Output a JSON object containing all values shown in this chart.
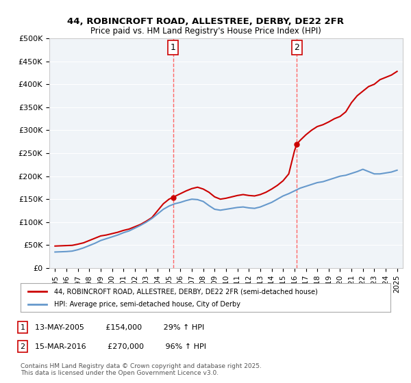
{
  "title1": "44, ROBINCROFT ROAD, ALLESTREE, DERBY, DE22 2FR",
  "title2": "Price paid vs. HM Land Registry's House Price Index (HPI)",
  "xlabel": "",
  "ylabel": "",
  "ylim": [
    0,
    500000
  ],
  "yticks": [
    0,
    50000,
    100000,
    150000,
    200000,
    250000,
    300000,
    350000,
    400000,
    450000,
    500000
  ],
  "ytick_labels": [
    "£0",
    "£50K",
    "£100K",
    "£150K",
    "£200K",
    "£250K",
    "£300K",
    "£350K",
    "£400K",
    "£450K",
    "£500K"
  ],
  "xlim_start": 1994.5,
  "xlim_end": 2025.5,
  "xticks": [
    1995,
    1996,
    1997,
    1998,
    1999,
    2000,
    2001,
    2002,
    2003,
    2004,
    2005,
    2006,
    2007,
    2008,
    2009,
    2010,
    2011,
    2012,
    2013,
    2014,
    2015,
    2016,
    2017,
    2018,
    2019,
    2020,
    2021,
    2022,
    2023,
    2024,
    2025
  ],
  "vline1_x": 2005.36,
  "vline2_x": 2016.21,
  "marker1_y": 154000,
  "marker2_y": 270000,
  "red_color": "#cc0000",
  "blue_color": "#6699cc",
  "vline_color": "#ff6666",
  "background_color": "#f0f4f8",
  "legend_label_red": "44, ROBINCROFT ROAD, ALLESTREE, DERBY, DE22 2FR (semi-detached house)",
  "legend_label_blue": "HPI: Average price, semi-detached house, City of Derby",
  "annotation1_label": "1",
  "annotation2_label": "2",
  "footnote1": "1    13-MAY-2005         £154,000         29% ↑ HPI",
  "footnote2": "2    15-MAR-2016         £270,000         96% ↑ HPI",
  "copyright": "Contains HM Land Registry data © Crown copyright and database right 2025.\nThis data is licensed under the Open Government Licence v3.0.",
  "red_line_x": [
    1995.0,
    1995.5,
    1996.0,
    1996.5,
    1997.0,
    1997.5,
    1998.0,
    1998.5,
    1999.0,
    1999.5,
    2000.0,
    2000.5,
    2001.0,
    2001.5,
    2002.0,
    2002.5,
    2003.0,
    2003.5,
    2004.0,
    2004.5,
    2005.0,
    2005.36,
    2005.5,
    2006.0,
    2006.5,
    2007.0,
    2007.5,
    2008.0,
    2008.5,
    2009.0,
    2009.5,
    2010.0,
    2010.5,
    2011.0,
    2011.5,
    2012.0,
    2012.5,
    2013.0,
    2013.5,
    2014.0,
    2014.5,
    2015.0,
    2015.5,
    2016.0,
    2016.21,
    2016.5,
    2017.0,
    2017.5,
    2018.0,
    2018.5,
    2019.0,
    2019.5,
    2020.0,
    2020.5,
    2021.0,
    2021.5,
    2022.0,
    2022.5,
    2023.0,
    2023.5,
    2024.0,
    2024.5,
    2025.0
  ],
  "red_line_y": [
    48000,
    48500,
    49000,
    49500,
    52000,
    55000,
    60000,
    65000,
    70000,
    72000,
    75000,
    78000,
    82000,
    85000,
    90000,
    95000,
    102000,
    110000,
    125000,
    140000,
    150000,
    154000,
    156000,
    162000,
    168000,
    173000,
    176000,
    172000,
    165000,
    155000,
    150000,
    152000,
    155000,
    158000,
    160000,
    158000,
    157000,
    160000,
    165000,
    172000,
    180000,
    190000,
    205000,
    255000,
    270000,
    278000,
    290000,
    300000,
    308000,
    312000,
    318000,
    325000,
    330000,
    340000,
    360000,
    375000,
    385000,
    395000,
    400000,
    410000,
    415000,
    420000,
    428000
  ],
  "blue_line_x": [
    1995.0,
    1995.5,
    1996.0,
    1996.5,
    1997.0,
    1997.5,
    1998.0,
    1998.5,
    1999.0,
    1999.5,
    2000.0,
    2000.5,
    2001.0,
    2001.5,
    2002.0,
    2002.5,
    2003.0,
    2003.5,
    2004.0,
    2004.5,
    2005.0,
    2005.5,
    2006.0,
    2006.5,
    2007.0,
    2007.5,
    2008.0,
    2008.5,
    2009.0,
    2009.5,
    2010.0,
    2010.5,
    2011.0,
    2011.5,
    2012.0,
    2012.5,
    2013.0,
    2013.5,
    2014.0,
    2014.5,
    2015.0,
    2015.5,
    2016.0,
    2016.5,
    2017.0,
    2017.5,
    2018.0,
    2018.5,
    2019.0,
    2019.5,
    2020.0,
    2020.5,
    2021.0,
    2021.5,
    2022.0,
    2022.5,
    2023.0,
    2023.5,
    2024.0,
    2024.5,
    2025.0
  ],
  "blue_line_y": [
    35000,
    35500,
    36000,
    37000,
    40000,
    44000,
    49000,
    54000,
    60000,
    64000,
    68000,
    72000,
    77000,
    81000,
    87000,
    93000,
    100000,
    108000,
    118000,
    128000,
    135000,
    140000,
    143000,
    147000,
    150000,
    149000,
    145000,
    136000,
    128000,
    126000,
    128000,
    130000,
    132000,
    133000,
    131000,
    130000,
    133000,
    138000,
    143000,
    150000,
    157000,
    162000,
    168000,
    174000,
    178000,
    182000,
    186000,
    188000,
    192000,
    196000,
    200000,
    202000,
    206000,
    210000,
    215000,
    210000,
    205000,
    205000,
    207000,
    209000,
    213000
  ]
}
